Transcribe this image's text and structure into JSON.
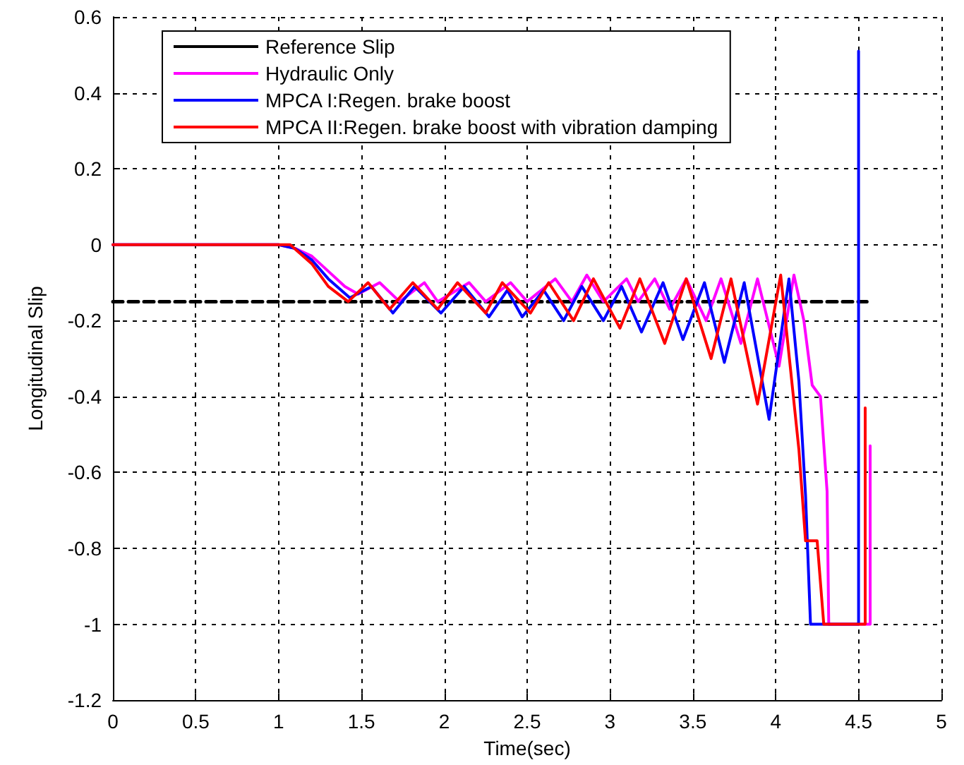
{
  "chart_data": {
    "type": "line",
    "xlabel": "Time(sec)",
    "ylabel": "Longitudinal Slip",
    "xlim": [
      0,
      5
    ],
    "xticks": [
      0,
      0.5,
      1,
      1.5,
      2,
      2.5,
      3,
      3.5,
      4,
      4.5,
      5
    ],
    "ylim": [
      -1.2,
      0.6
    ],
    "yticks": [
      -1.2,
      -1,
      -0.8,
      -0.6,
      -0.4,
      -0.2,
      0,
      0.2,
      0.4,
      0.6
    ],
    "grid": true,
    "legend": "top left",
    "marker": "none",
    "series": [
      {
        "name": "Reference Slip",
        "color": "#000000",
        "line_style": "dashed",
        "x": [
          0,
          4.55
        ],
        "values": [
          -0.15,
          -0.15
        ]
      },
      {
        "name": "Hydraulic Only",
        "color": "#ff00ff",
        "x": [
          0,
          1.0,
          1.1,
          1.2,
          1.3,
          1.4,
          1.48,
          1.61,
          1.73,
          1.88,
          1.96,
          2.15,
          2.25,
          2.4,
          2.5,
          2.67,
          2.77,
          2.86,
          2.96,
          3.1,
          3.17,
          3.27,
          3.36,
          3.46,
          3.58,
          3.67,
          3.79,
          3.89,
          4.02,
          4.11,
          4.17,
          4.22,
          4.27,
          4.31,
          4.32,
          4.57,
          4.57
        ],
        "values": [
          0,
          0,
          -0.01,
          -0.03,
          -0.07,
          -0.11,
          -0.13,
          -0.1,
          -0.15,
          -0.1,
          -0.15,
          -0.1,
          -0.15,
          -0.1,
          -0.15,
          -0.09,
          -0.15,
          -0.08,
          -0.15,
          -0.09,
          -0.15,
          -0.09,
          -0.17,
          -0.09,
          -0.2,
          -0.09,
          -0.26,
          -0.09,
          -0.32,
          -0.08,
          -0.2,
          -0.37,
          -0.4,
          -0.65,
          -1,
          -1,
          -0.53
        ]
      },
      {
        "name": "MPCA I:Regen. brake boost",
        "color": "#0000ff",
        "x": [
          0,
          1.0,
          1.1,
          1.2,
          1.3,
          1.43,
          1.56,
          1.69,
          1.82,
          1.98,
          2.12,
          2.27,
          2.38,
          2.47,
          2.6,
          2.72,
          2.83,
          2.96,
          3.07,
          3.19,
          3.32,
          3.44,
          3.57,
          3.69,
          3.81,
          3.96,
          4.08,
          4.14,
          4.18,
          4.21,
          4.5,
          4.5
        ],
        "values": [
          0,
          0,
          -0.01,
          -0.04,
          -0.09,
          -0.14,
          -0.11,
          -0.18,
          -0.11,
          -0.18,
          -0.11,
          -0.19,
          -0.12,
          -0.19,
          -0.12,
          -0.2,
          -0.11,
          -0.2,
          -0.11,
          -0.23,
          -0.1,
          -0.25,
          -0.1,
          -0.31,
          -0.1,
          -0.46,
          -0.09,
          -0.36,
          -0.66,
          -1,
          -1,
          0.51
        ]
      },
      {
        "name": "MPCA II:Regen. brake boost with vibration damping",
        "color": "#ff0000",
        "x": [
          0,
          1.0,
          1.07,
          1.2,
          1.3,
          1.42,
          1.54,
          1.67,
          1.81,
          1.96,
          2.08,
          2.25,
          2.35,
          2.52,
          2.63,
          2.78,
          2.9,
          3.06,
          3.18,
          3.33,
          3.46,
          3.61,
          3.73,
          3.89,
          4.03,
          4.14,
          4.18,
          4.25,
          4.29,
          4.54,
          4.54
        ],
        "values": [
          0,
          0,
          0,
          -0.05,
          -0.11,
          -0.15,
          -0.1,
          -0.17,
          -0.1,
          -0.17,
          -0.1,
          -0.18,
          -0.1,
          -0.18,
          -0.1,
          -0.2,
          -0.09,
          -0.22,
          -0.09,
          -0.26,
          -0.09,
          -0.3,
          -0.09,
          -0.42,
          -0.08,
          -0.54,
          -0.78,
          -0.78,
          -1,
          -1,
          -0.43
        ]
      }
    ]
  }
}
